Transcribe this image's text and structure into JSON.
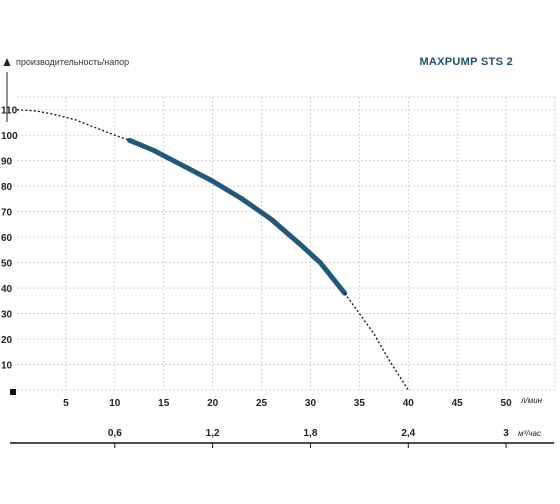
{
  "chart_data": {
    "type": "line",
    "title": "MAXPUMP STS 2",
    "ylabel": "производительность/напор",
    "xlabel": "л/мин",
    "x2label": "м³/час",
    "x2label_superscript": "3",
    "x2label_text": "м /час",
    "xlim": [
      0,
      55
    ],
    "ylim": [
      0,
      115
    ],
    "grid": true,
    "x_ticks": [
      5,
      10,
      15,
      20,
      25,
      30,
      35,
      40,
      45,
      50
    ],
    "x_tick_labels": [
      "5",
      "10",
      "15",
      "20",
      "25",
      "30",
      "35",
      "40",
      "45",
      "50"
    ],
    "y_ticks": [
      10,
      20,
      30,
      40,
      50,
      60,
      70,
      80,
      90,
      100,
      110
    ],
    "y_tick_labels": [
      "10",
      "20",
      "30",
      "40",
      "50",
      "60",
      "70",
      "80",
      "90",
      "100",
      "110"
    ],
    "x2_ticks": [
      0.6,
      1.2,
      1.8,
      2.4,
      3
    ],
    "x2_tick_labels": [
      "0,6",
      "1,2",
      "1,8",
      "2,4",
      "3"
    ],
    "series": [
      {
        "style": "dotted",
        "color": "#111111",
        "x": [
          0,
          2,
          4,
          6,
          8,
          10,
          11.5
        ],
        "y": [
          110,
          109.5,
          108,
          106,
          103,
          100,
          98
        ]
      },
      {
        "style": "solid",
        "color": "#24577a",
        "x": [
          11.5,
          14,
          17,
          20,
          23,
          26,
          29,
          31,
          33.5
        ],
        "y": [
          98,
          94,
          88,
          82,
          75,
          67,
          57,
          50,
          38
        ]
      },
      {
        "style": "dotted",
        "color": "#111111",
        "x": [
          33.5,
          35,
          36.5,
          38,
          39.5,
          40
        ],
        "y": [
          38,
          30,
          22,
          12,
          3,
          0
        ]
      }
    ]
  }
}
